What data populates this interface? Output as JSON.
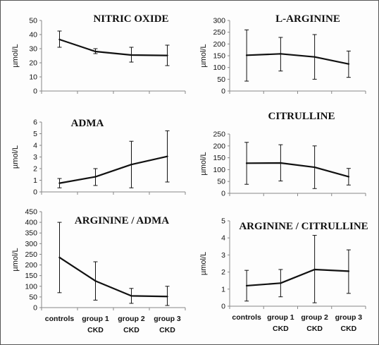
{
  "chart_data": [
    {
      "type": "line",
      "title": "NITRIC OXIDE",
      "ylabel": "µmol/L",
      "ylim": [
        0,
        50
      ],
      "yticks": [
        "0",
        "10",
        "20",
        "30",
        "40",
        "50"
      ],
      "categories": [
        "controls",
        "group 1 CKD",
        "group 2 CKD",
        "group 3 CKD"
      ],
      "values": [
        36.5,
        28,
        25.5,
        25.2
      ],
      "error_low": [
        31,
        26.5,
        20.5,
        18
      ],
      "error_high": [
        42.5,
        30,
        31,
        32.5
      ],
      "grid": false
    },
    {
      "type": "line",
      "title": "L-ARGININE",
      "ylabel": "µmol/L",
      "ylim": [
        0,
        300
      ],
      "yticks": [
        "0",
        "50",
        "100",
        "150",
        "200",
        "250",
        "300"
      ],
      "categories": [
        "controls",
        "group 1 CKD",
        "group 2 CKD",
        "group 3 CKD"
      ],
      "values": [
        152,
        158,
        145,
        115
      ],
      "error_low": [
        42,
        85,
        50,
        58
      ],
      "error_high": [
        260,
        228,
        240,
        170
      ],
      "grid": false
    },
    {
      "type": "line",
      "title": "ADMA",
      "ylabel": "µmol/L",
      "ylim": [
        0,
        6
      ],
      "yticks": [
        "0",
        "1",
        "2",
        "3",
        "4",
        "5",
        "6"
      ],
      "categories": [
        "controls",
        "group 1 CKD",
        "group 2 CKD",
        "group 3 CKD"
      ],
      "values": [
        0.75,
        1.3,
        2.35,
        3.05
      ],
      "error_low": [
        0.35,
        0.55,
        0.35,
        0.85
      ],
      "error_high": [
        1.15,
        2.0,
        4.35,
        5.25
      ],
      "grid": false
    },
    {
      "type": "line",
      "title": "CITRULLINE",
      "ylabel": "µmol/L",
      "ylim": [
        0,
        250
      ],
      "yticks": [
        "0",
        "50",
        "100",
        "150",
        "200",
        "250"
      ],
      "categories": [
        "controls",
        "group 1 CKD",
        "group 2 CKD",
        "group 3 CKD"
      ],
      "values": [
        127,
        128,
        110,
        70
      ],
      "error_low": [
        38,
        52,
        20,
        35
      ],
      "error_high": [
        215,
        205,
        200,
        105
      ],
      "grid": false
    },
    {
      "type": "line",
      "title": "ARGININE / ADMA",
      "ylabel": "µmol/L",
      "ylim": [
        0,
        450
      ],
      "yticks": [
        "0",
        "50",
        "100",
        "150",
        "200",
        "250",
        "300",
        "350",
        "400",
        "450"
      ],
      "categories": [
        "controls",
        "group 1 CKD",
        "group 2 CKD",
        "group 3 CKD"
      ],
      "values": [
        235,
        125,
        55,
        52
      ],
      "error_low": [
        70,
        35,
        20,
        10
      ],
      "error_high": [
        400,
        215,
        90,
        100
      ],
      "grid": false
    },
    {
      "type": "line",
      "title": "ARGININE / CITRULLINE",
      "ylabel": "µmol/L",
      "ylim": [
        0,
        5
      ],
      "yticks": [
        "0",
        "1",
        "2",
        "3",
        "4",
        "5"
      ],
      "categories": [
        "controls",
        "group 1 CKD",
        "group 2 CKD",
        "group 3 CKD"
      ],
      "values": [
        1.2,
        1.35,
        2.15,
        2.05
      ],
      "error_low": [
        0.3,
        0.55,
        0.2,
        0.75
      ],
      "error_high": [
        2.1,
        2.15,
        4.15,
        3.3
      ],
      "grid": false
    }
  ],
  "x_category_lines": [
    {
      "line1": "controls",
      "line2": ""
    },
    {
      "line1": "group 1",
      "line2": "CKD"
    },
    {
      "line1": "group 2",
      "line2": "CKD"
    },
    {
      "line1": "group 3",
      "line2": "CKD"
    }
  ],
  "colors": {
    "line": "#111111",
    "axis": "#888888",
    "text": "#111111"
  }
}
